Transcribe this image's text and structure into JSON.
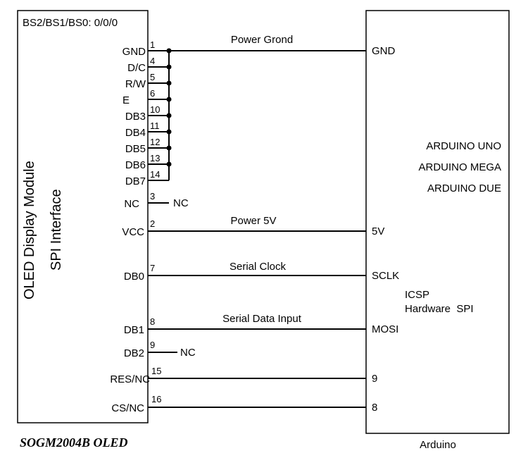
{
  "oled": {
    "mode": "BS2/BS1/BS0: 0/0/0",
    "title_line1": "OLED Display Module",
    "title_line2": "SPI Interface",
    "caption": "SOGM2004B OLED",
    "pins": [
      {
        "name": "GND",
        "num": "1"
      },
      {
        "name": "D/C",
        "num": "4"
      },
      {
        "name": "R/W",
        "num": "5"
      },
      {
        "name": "E",
        "num": "6"
      },
      {
        "name": "DB3",
        "num": "10"
      },
      {
        "name": "DB4",
        "num": "11"
      },
      {
        "name": "DB5",
        "num": "12"
      },
      {
        "name": "DB6",
        "num": "13"
      },
      {
        "name": "DB7",
        "num": "14"
      },
      {
        "name": "NC",
        "num": "3"
      },
      {
        "name": "VCC",
        "num": "2"
      },
      {
        "name": "DB0",
        "num": "7"
      },
      {
        "name": "DB1",
        "num": "8"
      },
      {
        "name": "DB2",
        "num": "9"
      },
      {
        "name": "RES/NC",
        "num": "15"
      },
      {
        "name": "CS/NC",
        "num": "16"
      }
    ],
    "nc_label": "NC"
  },
  "arduino": {
    "caption": "Arduino",
    "boards": [
      "ARDUINO UNO",
      "ARDUINO MEGA",
      "ARDUINO DUE"
    ],
    "icsp_line1": "ICSP",
    "icsp_line2": "Hardware  SPI",
    "pins": {
      "gnd": "GND",
      "v5": "5V",
      "sclk": "SCLK",
      "mosi": "MOSI",
      "d9": "9",
      "d8": "8"
    }
  },
  "signals": {
    "gnd": "Power Grond",
    "vcc": "Power 5V",
    "sclk": "Serial Clock",
    "mosi": "Serial Data Input"
  }
}
